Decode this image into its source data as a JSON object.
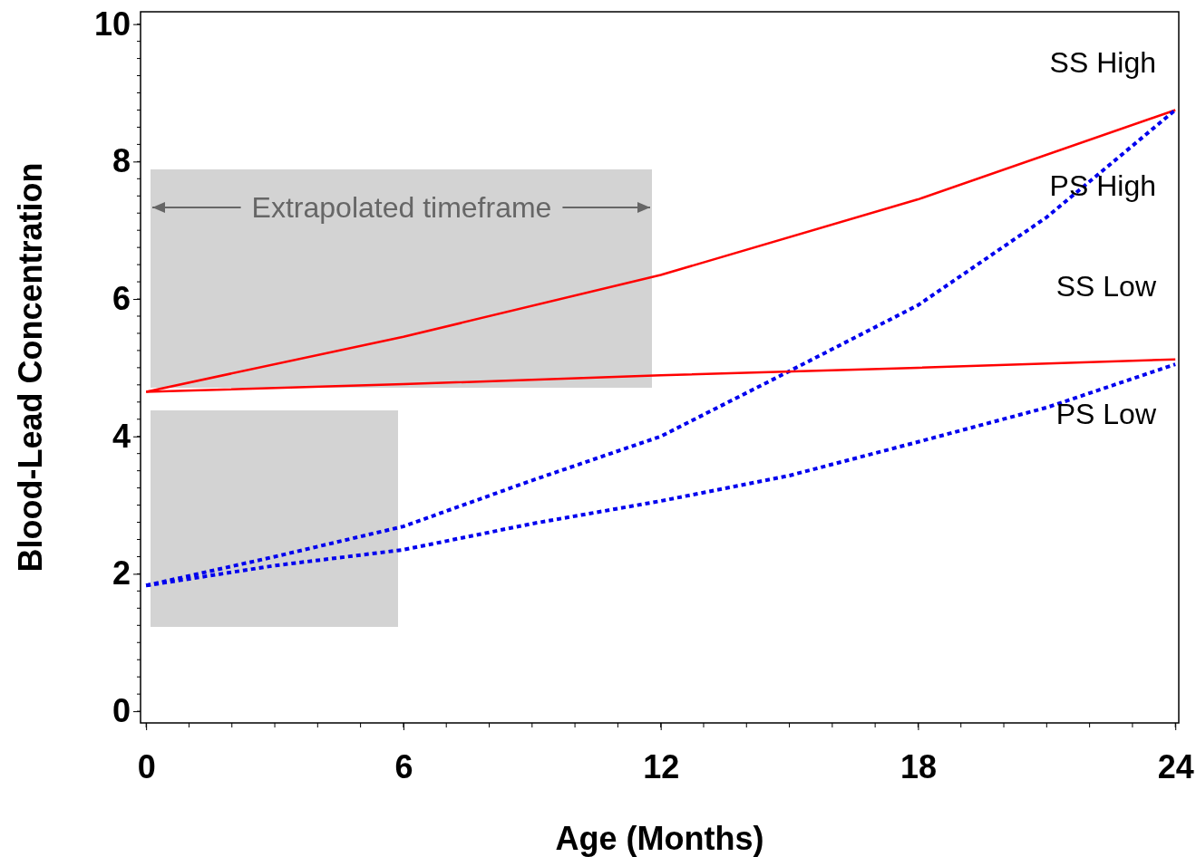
{
  "chart_data": {
    "type": "line",
    "xlabel": "Age (Months)",
    "ylabel": "Blood-Lead Concentration",
    "xlim": [
      -0.13,
      24.08
    ],
    "xticks": [
      0,
      6,
      12,
      18,
      24
    ],
    "ylim": [
      -0.17,
      10.18
    ],
    "yticks": [
      0,
      2,
      4,
      6,
      8,
      10
    ],
    "grid": false,
    "series": [
      {
        "name": "SS High",
        "color": "#ff0000",
        "line_style": "solid",
        "x": [
          0,
          6,
          12,
          18,
          24
        ],
        "values": [
          4.65,
          5.45,
          6.35,
          7.45,
          8.75
        ]
      },
      {
        "name": "PS High",
        "color": "#0000ee",
        "line_style": "dotted",
        "x": [
          0,
          3,
          6,
          9,
          12,
          15,
          18,
          21,
          24
        ],
        "values": [
          1.83,
          2.25,
          2.69,
          3.36,
          4.0,
          4.95,
          5.91,
          7.19,
          8.75
        ]
      },
      {
        "name": "SS Low",
        "color": "#ff0000",
        "line_style": "solid",
        "x": [
          0,
          6,
          12,
          18,
          24
        ],
        "values": [
          4.65,
          4.76,
          4.89,
          5.0,
          5.12
        ]
      },
      {
        "name": "PS Low",
        "color": "#0000ee",
        "line_style": "dotted",
        "x": [
          0,
          3,
          6,
          9,
          12,
          15,
          18,
          21,
          24
        ],
        "values": [
          1.83,
          2.12,
          2.35,
          2.73,
          3.06,
          3.43,
          3.92,
          4.42,
          5.05
        ]
      }
    ],
    "annotations": [
      "Extrapolated timeframe"
    ]
  }
}
